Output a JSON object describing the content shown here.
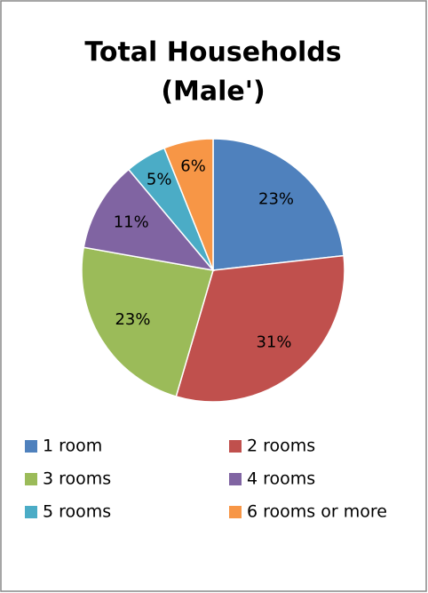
{
  "chart_data": {
    "type": "pie",
    "title": [
      "Total Households",
      "(Male')"
    ],
    "categories": [
      "1 room",
      "2 rooms",
      "3 rooms",
      "4 rooms",
      "5 rooms",
      "6 rooms or more"
    ],
    "values": [
      23,
      31,
      23,
      11,
      5,
      6
    ],
    "value_labels": [
      "23%",
      "31%",
      "23%",
      "11%",
      "5%",
      "6%"
    ],
    "colors": [
      "#4f81bd",
      "#c0504d",
      "#9bbb59",
      "#8064a2",
      "#4bacc6",
      "#f79646"
    ],
    "legend": "bottom"
  }
}
